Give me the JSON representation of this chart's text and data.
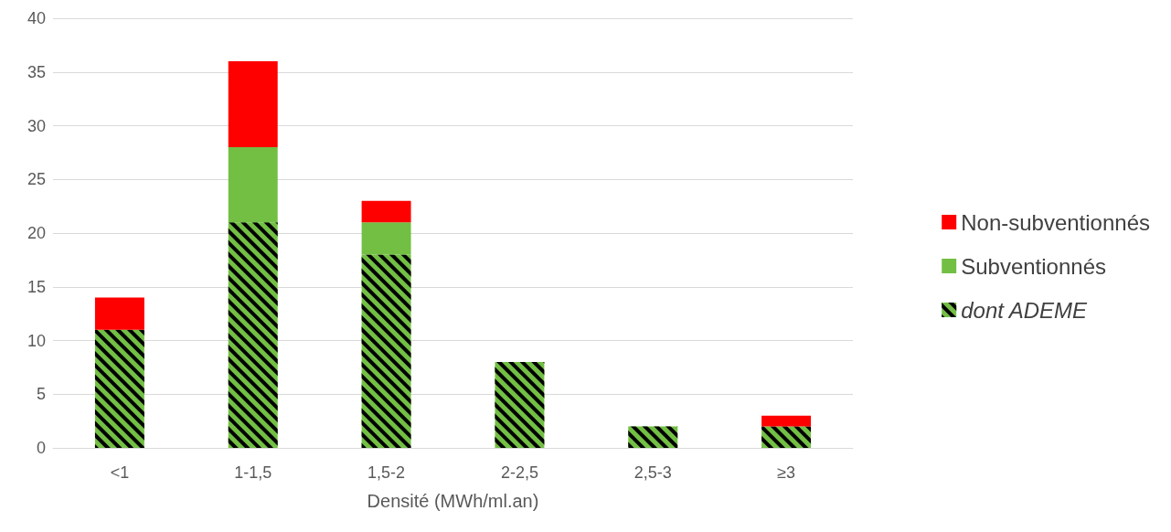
{
  "chart_data": {
    "type": "bar",
    "stacked": true,
    "xlabel": "Densité (MWh/ml.an)",
    "categories": [
      "<1",
      "1-1,5",
      "1,5-2",
      "2-2,5",
      "2,5-3",
      "≥3"
    ],
    "series": [
      {
        "name": "dont ADEME",
        "color": "#72bf44",
        "values": [
          11,
          21,
          18,
          8,
          2,
          2
        ]
      },
      {
        "name": "Subventionnés",
        "color": "#72bf44",
        "values": [
          0,
          7,
          3,
          0,
          0,
          0
        ]
      },
      {
        "name": "Non-subventionnés",
        "color": "#ff0000",
        "values": [
          3,
          8,
          2,
          0,
          0,
          1
        ]
      }
    ],
    "ylim": [
      0,
      40
    ],
    "yticks": [
      0,
      5,
      10,
      15,
      20,
      25,
      30,
      35,
      40
    ],
    "grid": "y",
    "legend": "right"
  }
}
